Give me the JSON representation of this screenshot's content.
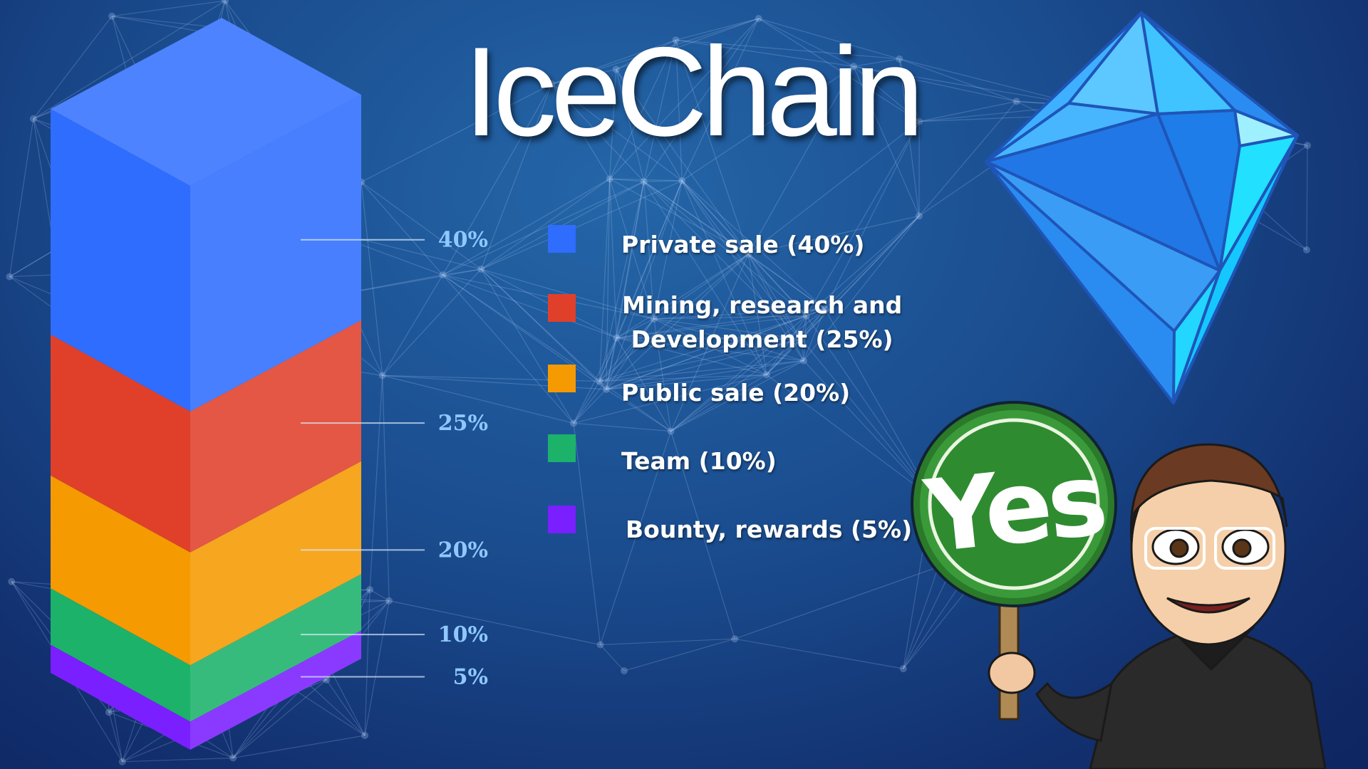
{
  "title": "IceChain",
  "chart_data": {
    "type": "bar",
    "subtype": "stacked-3d",
    "categories": [
      "Private sale",
      "Mining, research and Development",
      "Public sale",
      "Team",
      "Bounty, rewards"
    ],
    "values": [
      40,
      25,
      20,
      10,
      5
    ],
    "labels": [
      "40%",
      "25%",
      "20%",
      "10%",
      "5%"
    ],
    "colors": [
      "#2f6dff",
      "#e0402a",
      "#f59a00",
      "#1cb26a",
      "#7a1fff"
    ],
    "legend": [
      "Private sale (40%)",
      "Mining, research and",
      "Development (25%)",
      "Public sale (20%)",
      "Team (10%)",
      "Bounty, rewards (5%)"
    ],
    "legend_position": "right"
  },
  "sign": {
    "text": "Yes"
  }
}
